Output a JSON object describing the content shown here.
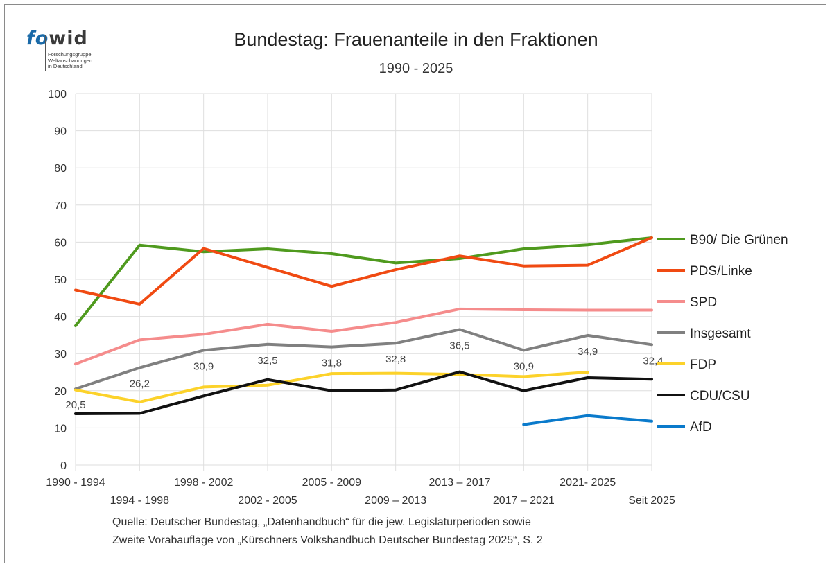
{
  "logo": {
    "word_fo": "fo",
    "word_wid": "wid",
    "line1": "Forschungsgruppe",
    "line2": "Weltanschauungen",
    "line3": "in Deutschland"
  },
  "source": {
    "line1": "Quelle: Deutscher Bundestag, „Datenhandbuch“ für die jew. Legislaturperioden sowie",
    "line2": "Zweite Vorabauflage von „Kürschners Volkshandbuch Deutscher Bundestag 2025“, S. 2"
  },
  "chart_data": {
    "type": "line",
    "title": "Bundestag: Frauenanteile in den Fraktionen",
    "subtitle": "1990 - 2025",
    "xlabel": "",
    "ylabel": "",
    "ylim": [
      0,
      100
    ],
    "yticks": [
      0,
      10,
      20,
      30,
      40,
      50,
      60,
      70,
      80,
      90,
      100
    ],
    "grid": true,
    "legend_position": "right",
    "categories": [
      "1990 - 1994",
      "1994 - 1998",
      "1998 - 2002",
      "2002 - 2005",
      "2005 - 2009",
      "2009 – 2013",
      "2013 – 2017",
      "2017 – 2021",
      "2021- 2025",
      "Seit 2025"
    ],
    "series": [
      {
        "name": "B90/ Die Grünen",
        "color": "#4f9a1e",
        "values": [
          37.5,
          59.2,
          57.4,
          58.2,
          56.9,
          54.4,
          55.6,
          58.2,
          59.3,
          61.2
        ]
      },
      {
        "name": "PDS/Linke",
        "color": "#f04a12",
        "values": [
          47.1,
          43.3,
          58.3,
          53.2,
          48.1,
          52.6,
          56.3,
          53.6,
          53.8,
          61.2
        ]
      },
      {
        "name": "SPD",
        "color": "#f58c8c",
        "values": [
          27.2,
          33.7,
          35.2,
          37.9,
          36.0,
          38.4,
          42.0,
          41.8,
          41.7,
          41.7
        ]
      },
      {
        "name": "Insgesamt",
        "color": "#808080",
        "values": [
          20.5,
          26.2,
          30.9,
          32.5,
          31.8,
          32.8,
          36.5,
          30.9,
          34.9,
          32.4
        ],
        "labels": [
          "20,5",
          "26,2",
          "30,9",
          "32,5",
          "31,8",
          "32,8",
          "36,5",
          "30,9",
          "34,9",
          "32,4"
        ]
      },
      {
        "name": "FDP",
        "color": "#fcd22a",
        "values": [
          20.2,
          17.0,
          21.0,
          21.5,
          24.6,
          24.7,
          24.4,
          23.8,
          25.0,
          null
        ]
      },
      {
        "name": "CDU/CSU",
        "color": "#111111",
        "values": [
          13.8,
          13.9,
          18.6,
          23.0,
          20.0,
          20.2,
          25.1,
          20.0,
          23.5,
          23.1
        ]
      },
      {
        "name": "AfD",
        "color": "#0a7acb",
        "values": [
          null,
          null,
          null,
          null,
          null,
          null,
          null,
          10.9,
          13.3,
          11.8
        ]
      }
    ]
  }
}
